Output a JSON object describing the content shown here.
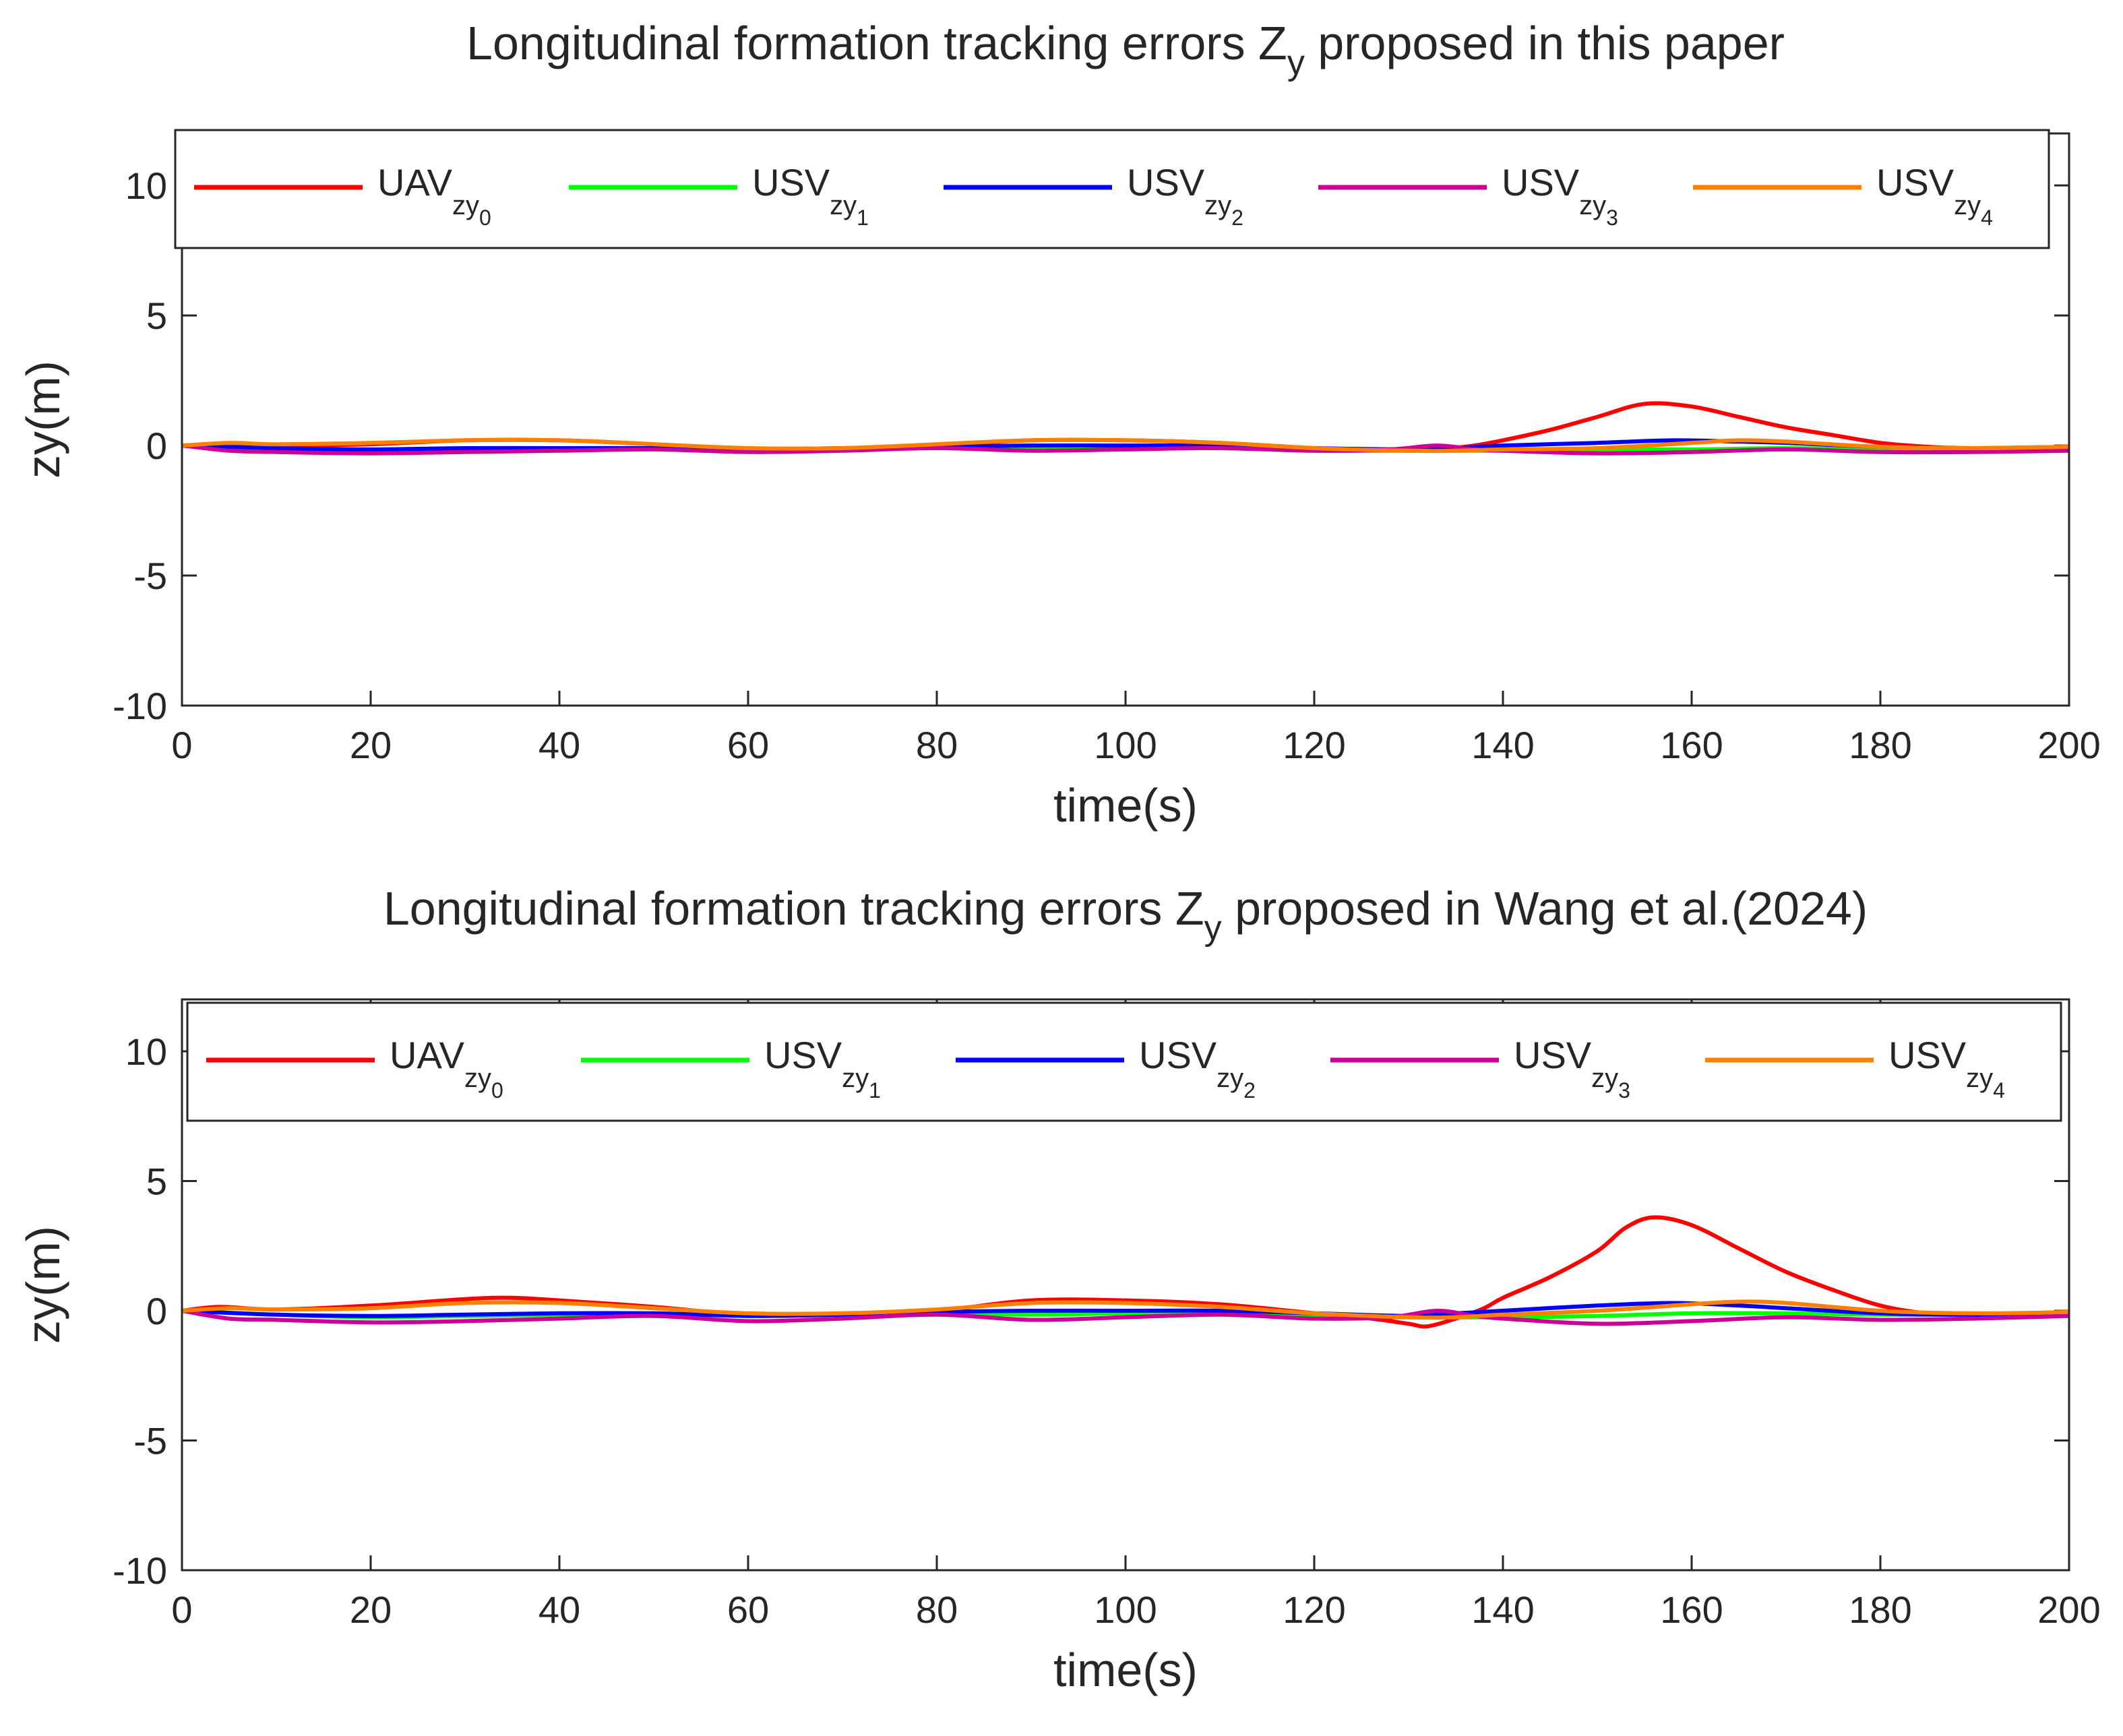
{
  "chart_data": [
    {
      "type": "line",
      "title": "Longitudinal formation tracking errors Z",
      "title_subscript": "y",
      "title_suffix": "proposed in this paper",
      "xlabel": "time(s)",
      "ylabel": "zy(m)",
      "xlim": [
        0,
        200
      ],
      "ylim": [
        -10,
        12
      ],
      "xticks": [
        0,
        20,
        40,
        60,
        80,
        100,
        120,
        140,
        160,
        180,
        200
      ],
      "yticks": [
        -10,
        -5,
        0,
        5,
        10
      ],
      "legend_position": "top",
      "series": [
        {
          "name": "UAV",
          "sub": "zy",
          "subsub": "0",
          "color": "#ff0000",
          "x": [
            0,
            4,
            10,
            20,
            30,
            40,
            50,
            60,
            70,
            80,
            90,
            100,
            110,
            120,
            125,
            130,
            133,
            137,
            140,
            145,
            150,
            155,
            160,
            165,
            170,
            175,
            180,
            185,
            190,
            200
          ],
          "y": [
            0,
            0.05,
            0,
            0.05,
            0.2,
            0.2,
            0.05,
            -0.15,
            -0.15,
            0,
            0.2,
            0.2,
            0.1,
            -0.1,
            -0.15,
            -0.2,
            -0.15,
            0,
            0.2,
            0.6,
            1.1,
            1.6,
            1.5,
            1.1,
            0.7,
            0.4,
            0.1,
            -0.05,
            -0.1,
            -0.05
          ]
        },
        {
          "name": "USV",
          "sub": "zy",
          "subsub": "1",
          "color": "#00ff00",
          "x": [
            0,
            10,
            20,
            30,
            40,
            50,
            60,
            70,
            80,
            90,
            100,
            110,
            120,
            130,
            140,
            150,
            160,
            170,
            180,
            190,
            200
          ],
          "y": [
            0,
            -0.1,
            -0.2,
            -0.2,
            -0.15,
            -0.1,
            -0.2,
            -0.15,
            -0.1,
            -0.15,
            -0.1,
            -0.1,
            -0.2,
            -0.2,
            -0.2,
            -0.15,
            -0.15,
            -0.1,
            -0.15,
            -0.15,
            -0.1
          ]
        },
        {
          "name": "USV",
          "sub": "zy",
          "subsub": "2",
          "color": "#0000ff",
          "x": [
            0,
            10,
            20,
            30,
            40,
            50,
            60,
            70,
            80,
            90,
            100,
            110,
            120,
            130,
            135,
            140,
            150,
            158,
            165,
            170,
            180,
            190,
            200
          ],
          "y": [
            0,
            -0.1,
            -0.15,
            -0.1,
            -0.1,
            -0.1,
            -0.15,
            -0.1,
            -0.05,
            0,
            0,
            0,
            -0.1,
            -0.15,
            -0.1,
            0,
            0.1,
            0.2,
            0.15,
            0.1,
            -0.05,
            -0.1,
            -0.1
          ]
        },
        {
          "name": "USV",
          "sub": "zy",
          "subsub": "3",
          "color": "#cc0099",
          "x": [
            0,
            5,
            10,
            20,
            30,
            40,
            50,
            60,
            70,
            80,
            90,
            100,
            110,
            120,
            128,
            133,
            137,
            140,
            150,
            160,
            170,
            180,
            190,
            200
          ],
          "y": [
            0,
            -0.2,
            -0.25,
            -0.3,
            -0.25,
            -0.2,
            -0.15,
            -0.25,
            -0.2,
            -0.1,
            -0.2,
            -0.15,
            -0.1,
            -0.2,
            -0.15,
            0,
            -0.15,
            -0.2,
            -0.3,
            -0.25,
            -0.15,
            -0.25,
            -0.25,
            -0.2
          ]
        },
        {
          "name": "USV",
          "sub": "zy",
          "subsub": "4",
          "color": "#ff8000",
          "x": [
            0,
            5,
            10,
            20,
            30,
            40,
            50,
            60,
            70,
            80,
            90,
            100,
            110,
            120,
            130,
            135,
            140,
            150,
            160,
            165,
            170,
            180,
            190,
            200
          ],
          "y": [
            0,
            0.1,
            0.05,
            0.1,
            0.2,
            0.2,
            0.05,
            -0.1,
            -0.1,
            0.05,
            0.2,
            0.2,
            0.1,
            -0.1,
            -0.2,
            -0.2,
            -0.15,
            -0.1,
            0.1,
            0.2,
            0.15,
            -0.05,
            -0.1,
            -0.05
          ]
        }
      ]
    },
    {
      "type": "line",
      "title": "Longitudinal formation tracking errors Z",
      "title_subscript": "y",
      "title_suffix": "proposed in Wang et al.(2024)",
      "xlabel": "time(s)",
      "ylabel": "zy(m)",
      "xlim": [
        0,
        200
      ],
      "ylim": [
        -10,
        12
      ],
      "xticks": [
        0,
        20,
        40,
        60,
        80,
        100,
        120,
        140,
        160,
        180,
        200
      ],
      "yticks": [
        -10,
        -5,
        0,
        5,
        10
      ],
      "legend_position": "top",
      "series": [
        {
          "name": "UAV",
          "sub": "zy",
          "subsub": "0",
          "color": "#ff0000",
          "x": [
            0,
            4,
            10,
            20,
            30,
            35,
            40,
            50,
            60,
            70,
            80,
            90,
            100,
            110,
            120,
            126,
            130,
            132,
            135,
            138,
            140,
            145,
            150,
            153,
            156,
            160,
            165,
            170,
            175,
            180,
            185,
            190,
            200
          ],
          "y": [
            0,
            0.15,
            0.05,
            0.2,
            0.45,
            0.5,
            0.4,
            0.15,
            -0.15,
            -0.15,
            0,
            0.4,
            0.4,
            0.25,
            -0.1,
            -0.3,
            -0.5,
            -0.6,
            -0.3,
            0.1,
            0.5,
            1.3,
            2.3,
            3.2,
            3.6,
            3.3,
            2.4,
            1.5,
            0.8,
            0.2,
            -0.1,
            -0.15,
            -0.1
          ]
        },
        {
          "name": "USV",
          "sub": "zy",
          "subsub": "1",
          "color": "#00ff00",
          "x": [
            0,
            10,
            20,
            30,
            40,
            50,
            60,
            70,
            80,
            90,
            100,
            110,
            120,
            130,
            140,
            150,
            160,
            170,
            180,
            190,
            200
          ],
          "y": [
            0,
            -0.15,
            -0.25,
            -0.2,
            -0.15,
            -0.1,
            -0.2,
            -0.15,
            -0.1,
            -0.15,
            -0.1,
            -0.1,
            -0.2,
            -0.25,
            -0.25,
            -0.2,
            -0.1,
            -0.1,
            -0.15,
            -0.15,
            -0.1
          ]
        },
        {
          "name": "USV",
          "sub": "zy",
          "subsub": "2",
          "color": "#0000ff",
          "x": [
            0,
            10,
            20,
            30,
            40,
            50,
            60,
            70,
            80,
            90,
            100,
            110,
            120,
            130,
            135,
            140,
            150,
            158,
            165,
            170,
            180,
            190,
            200
          ],
          "y": [
            0,
            -0.15,
            -0.2,
            -0.15,
            -0.1,
            -0.1,
            -0.2,
            -0.15,
            -0.05,
            0,
            0,
            0,
            -0.1,
            -0.2,
            -0.1,
            0,
            0.2,
            0.3,
            0.2,
            0.1,
            -0.1,
            -0.15,
            -0.1
          ]
        },
        {
          "name": "USV",
          "sub": "zy",
          "subsub": "3",
          "color": "#cc0099",
          "x": [
            0,
            5,
            10,
            20,
            30,
            40,
            50,
            60,
            70,
            80,
            90,
            100,
            110,
            120,
            128,
            133,
            137,
            140,
            150,
            160,
            170,
            180,
            190,
            200
          ],
          "y": [
            0,
            -0.3,
            -0.35,
            -0.45,
            -0.4,
            -0.3,
            -0.2,
            -0.4,
            -0.3,
            -0.15,
            -0.35,
            -0.25,
            -0.15,
            -0.3,
            -0.25,
            0,
            -0.2,
            -0.3,
            -0.5,
            -0.4,
            -0.25,
            -0.35,
            -0.3,
            -0.2
          ]
        },
        {
          "name": "USV",
          "sub": "zy",
          "subsub": "4",
          "color": "#ff8000",
          "x": [
            0,
            5,
            10,
            20,
            30,
            40,
            50,
            60,
            70,
            80,
            90,
            100,
            110,
            120,
            130,
            135,
            140,
            150,
            160,
            165,
            170,
            180,
            190,
            200
          ],
          "y": [
            0,
            0.1,
            0.05,
            0.1,
            0.3,
            0.3,
            0.1,
            -0.1,
            -0.1,
            0.05,
            0.3,
            0.3,
            0.15,
            -0.1,
            -0.25,
            -0.25,
            -0.15,
            0,
            0.25,
            0.35,
            0.3,
            0,
            -0.1,
            -0.05
          ]
        }
      ]
    }
  ]
}
